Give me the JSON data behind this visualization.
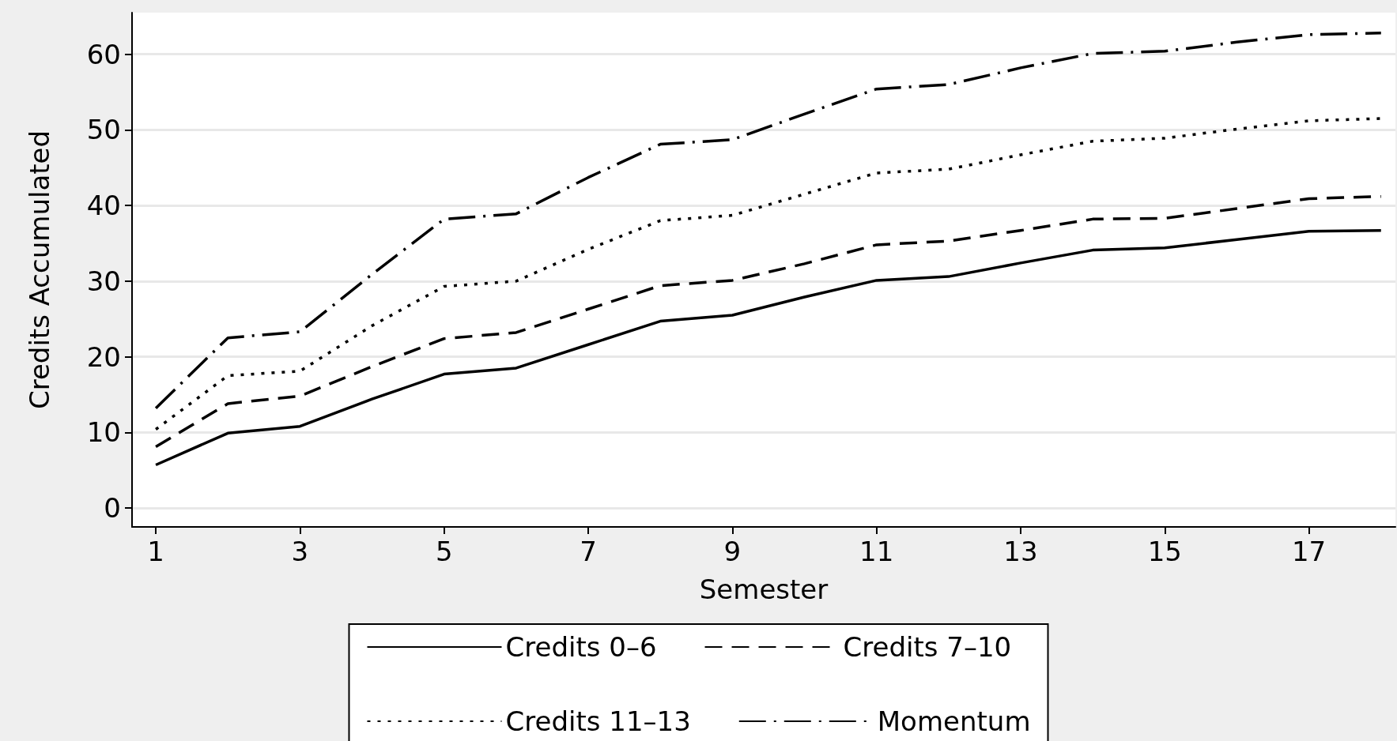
{
  "chart_data": {
    "type": "line",
    "xlabel": "Semester",
    "ylabel": "Credits Accumulated",
    "x": [
      1,
      2,
      3,
      4,
      5,
      6,
      7,
      8,
      9,
      10,
      11,
      12,
      13,
      14,
      15,
      16,
      17,
      18
    ],
    "series": [
      {
        "name": "Credits 0–6",
        "color": "#000000",
        "line_style": "solid",
        "values": [
          5.7,
          9.9,
          10.8,
          14.4,
          17.7,
          18.5,
          21.6,
          24.7,
          25.5,
          27.9,
          30.1,
          30.6,
          32.4,
          34.1,
          34.4,
          35.5,
          36.6,
          36.7
        ]
      },
      {
        "name": "Credits 7–10",
        "color": "#000000",
        "line_style": "dashed",
        "values": [
          8.1,
          13.8,
          14.8,
          18.7,
          22.4,
          23.2,
          26.3,
          29.4,
          30.1,
          32.3,
          34.8,
          35.3,
          36.7,
          38.2,
          38.3,
          39.6,
          40.9,
          41.2
        ]
      },
      {
        "name": "Credits 11–13",
        "color": "#000000",
        "line_style": "dotted",
        "values": [
          10.4,
          17.5,
          18.1,
          24.1,
          29.3,
          30.0,
          34.2,
          38.0,
          38.7,
          41.5,
          44.3,
          44.8,
          46.7,
          48.5,
          48.9,
          50.1,
          51.2,
          51.5
        ]
      },
      {
        "name": "Momentum",
        "color": "#000000",
        "line_style": "dashdot",
        "values": [
          13.2,
          22.5,
          23.3,
          30.9,
          38.2,
          38.9,
          43.7,
          48.1,
          48.7,
          52.1,
          55.4,
          56.0,
          58.2,
          60.1,
          60.4,
          61.6,
          62.6,
          62.8
        ]
      }
    ],
    "xlim": [
      0.67,
      18.2
    ],
    "xticks": [
      1,
      3,
      5,
      7,
      9,
      11,
      13,
      15,
      17
    ],
    "ylim": [
      -2.5,
      65.5
    ],
    "yticks": [
      0,
      10,
      20,
      30,
      40,
      50,
      60
    ],
    "grid": "y",
    "legend": "bottom",
    "marker": "none"
  }
}
